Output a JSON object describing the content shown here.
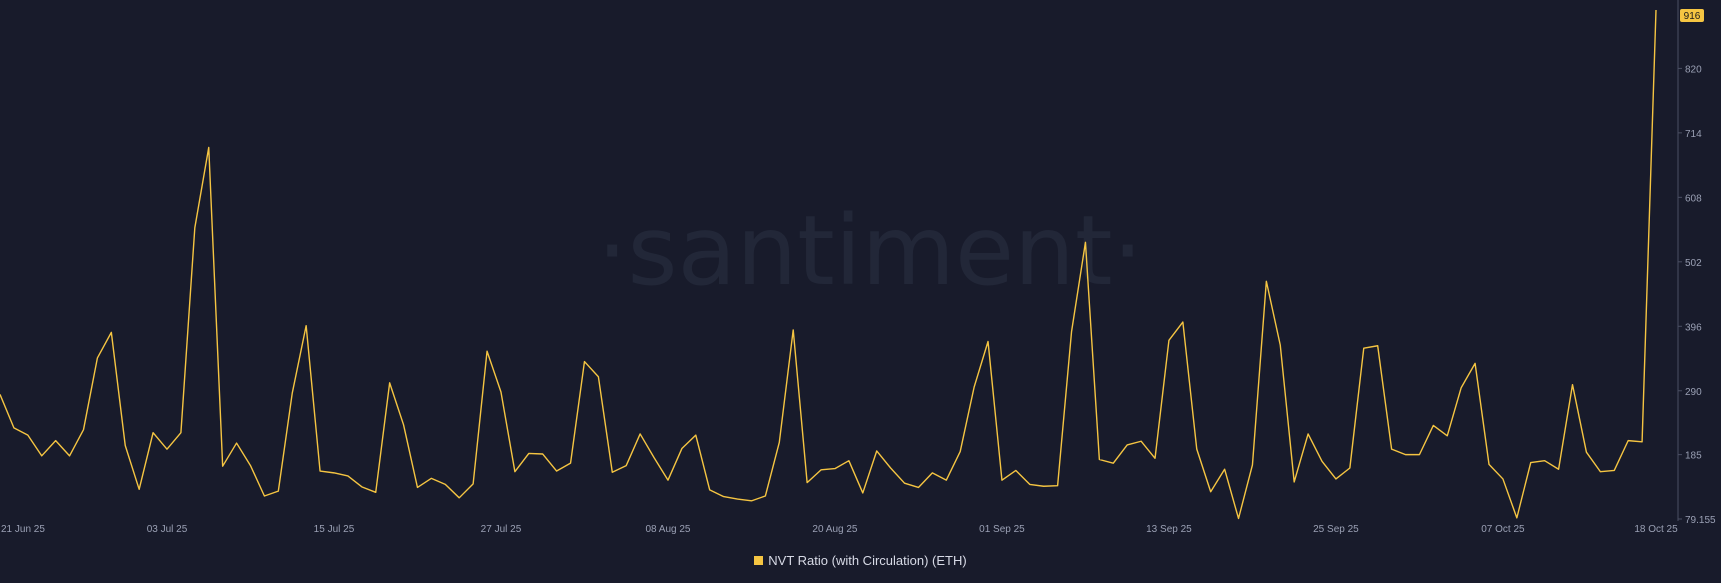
{
  "watermark": "·santiment·",
  "chart_data": {
    "type": "line",
    "title": "",
    "xlabel": "",
    "ylabel": "",
    "grid": false,
    "legend_position": "bottom-center",
    "x_start": "2025-06-21",
    "x_end": "2025-10-18",
    "x_ticks": [
      "21 Jun 25",
      "03 Jul 25",
      "15 Jul 25",
      "27 Jul 25",
      "08 Aug 25",
      "20 Aug 25",
      "01 Sep 25",
      "13 Sep 25",
      "25 Sep 25",
      "07 Oct 25",
      "18 Oct 25"
    ],
    "y_ticks": [
      "79.155",
      "185",
      "290",
      "396",
      "502",
      "608",
      "714",
      "820"
    ],
    "y_tick_values": [
      79.155,
      185,
      290,
      396,
      502,
      608,
      714,
      820
    ],
    "ylim": [
      79.155,
      916
    ],
    "last_value_label": "916",
    "series": [
      {
        "name": "NVT Ratio (with Circulation) (ETH)",
        "color": "#f5c542",
        "values": [
          284,
          229,
          217,
          183,
          208,
          183,
          226,
          344,
          386,
          200,
          128,
          221,
          194,
          221,
          558,
          690,
          166,
          204,
          167,
          117,
          125,
          286,
          397,
          158,
          155,
          150,
          132,
          123,
          303,
          234,
          131,
          146,
          136,
          114,
          137,
          355,
          288,
          157,
          187,
          186,
          158,
          171,
          338,
          313,
          156,
          167,
          219,
          180,
          143,
          195,
          217,
          127,
          116,
          112,
          109,
          117,
          205,
          390,
          139,
          160,
          162,
          175,
          122,
          191,
          163,
          138,
          131,
          155,
          143,
          190,
          296,
          371,
          143,
          159,
          136,
          133,
          134,
          387,
          534,
          177,
          171,
          201,
          207,
          179,
          373,
          403,
          194,
          124,
          161,
          80,
          168,
          470,
          365,
          140,
          219,
          174,
          145,
          163,
          360,
          364,
          194,
          185,
          185,
          233,
          216,
          295,
          335,
          169,
          145,
          81,
          172,
          175,
          161,
          300,
          189,
          157,
          159,
          208,
          206,
          916
        ]
      }
    ]
  }
}
